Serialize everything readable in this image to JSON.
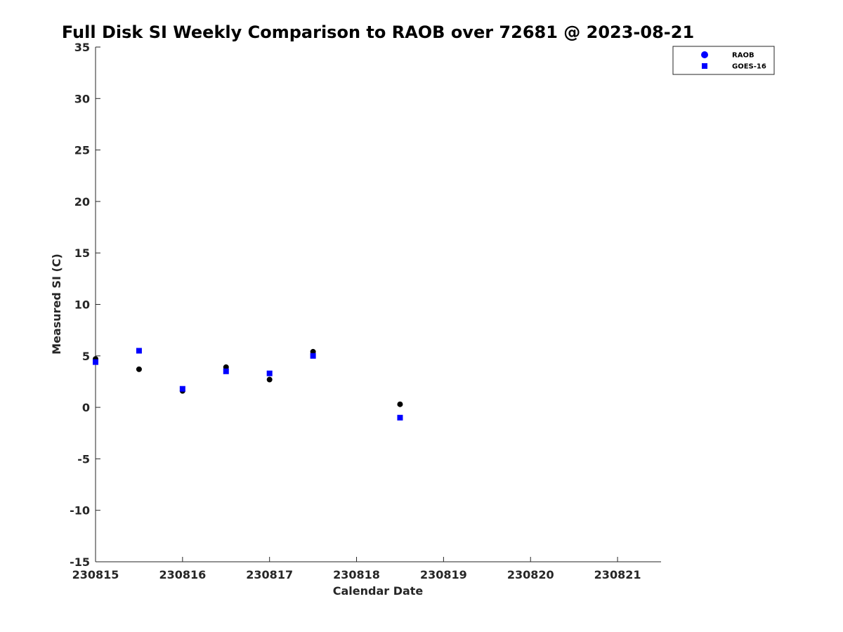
{
  "chart_data": {
    "type": "scatter",
    "title": "Full Disk SI Weekly Comparison to RAOB over 72681 @ 2023-08-21",
    "xlabel": "Calendar Date",
    "ylabel": "Measured SI (C)",
    "xlim": [
      230815,
      230821.5
    ],
    "ylim": [
      -15,
      35
    ],
    "xticks": [
      230815,
      230816,
      230817,
      230818,
      230819,
      230820,
      230821
    ],
    "xtick_labels": [
      "230815",
      "230816",
      "230817",
      "230818",
      "230819",
      "230820",
      "230821"
    ],
    "yticks": [
      -15,
      -10,
      -5,
      0,
      5,
      10,
      15,
      20,
      25,
      30,
      35
    ],
    "ytick_labels": [
      "-15",
      "-10",
      "-5",
      "0",
      "5",
      "10",
      "15",
      "20",
      "25",
      "30",
      "35"
    ],
    "grid": false,
    "legend_position": "top-right",
    "legend": [
      "RAOB",
      "GOES-16"
    ],
    "series": [
      {
        "name": "RAOB",
        "marker": "circle",
        "color": "#000000",
        "x": [
          230815.0,
          230815.5,
          230816.0,
          230816.5,
          230817.0,
          230817.5,
          230818.5
        ],
        "y": [
          4.7,
          3.7,
          1.6,
          3.9,
          2.7,
          5.4,
          0.3
        ]
      },
      {
        "name": "GOES-16",
        "marker": "square",
        "color": "#0000ff",
        "x": [
          230815.0,
          230815.5,
          230816.0,
          230816.5,
          230817.0,
          230817.5,
          230818.5
        ],
        "y": [
          4.4,
          5.5,
          1.8,
          3.5,
          3.3,
          5.0,
          -1.0
        ]
      }
    ],
    "legend_marker_colors": [
      "#0000ff",
      "#0000ff"
    ]
  }
}
